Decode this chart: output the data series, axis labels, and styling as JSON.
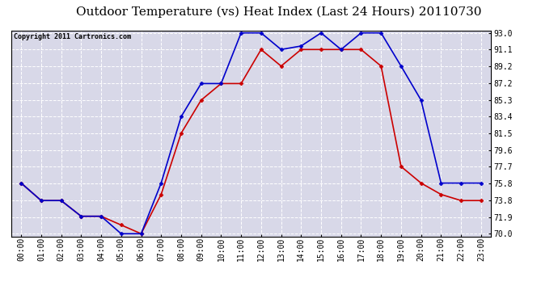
{
  "title": "Outdoor Temperature (vs) Heat Index (Last 24 Hours) 20110730",
  "copyright_text": "Copyright 2011 Cartronics.com",
  "hours": [
    "00:00",
    "01:00",
    "02:00",
    "03:00",
    "04:00",
    "05:00",
    "06:00",
    "07:00",
    "08:00",
    "09:00",
    "10:00",
    "11:00",
    "12:00",
    "13:00",
    "14:00",
    "15:00",
    "16:00",
    "17:00",
    "18:00",
    "19:00",
    "20:00",
    "21:00",
    "22:00",
    "23:00"
  ],
  "temp": [
    75.8,
    73.8,
    73.8,
    72.0,
    72.0,
    71.0,
    70.0,
    74.5,
    81.5,
    85.3,
    87.2,
    87.2,
    91.1,
    89.2,
    91.1,
    91.1,
    91.1,
    91.1,
    89.2,
    77.7,
    75.8,
    74.5,
    73.8,
    73.8
  ],
  "heat_index": [
    75.8,
    73.8,
    73.8,
    72.0,
    72.0,
    70.0,
    70.0,
    75.8,
    83.4,
    87.2,
    87.2,
    93.0,
    93.0,
    91.1,
    91.5,
    93.0,
    91.1,
    93.0,
    93.0,
    89.2,
    85.3,
    75.8,
    75.8,
    75.8
  ],
  "ylim_min": 70.0,
  "ylim_max": 93.0,
  "yticks": [
    70.0,
    71.9,
    73.8,
    75.8,
    77.7,
    79.6,
    81.5,
    83.4,
    85.3,
    87.2,
    89.2,
    91.1,
    93.0
  ],
  "temp_color": "#cc0000",
  "heat_color": "#0000cc",
  "bg_color": "#ffffff",
  "plot_bg_color": "#d8d8e8",
  "grid_color": "#ffffff",
  "title_fontsize": 11,
  "copyright_fontsize": 6,
  "tick_fontsize": 7,
  "marker": "D",
  "marker_size": 2.5,
  "line_width": 1.2
}
